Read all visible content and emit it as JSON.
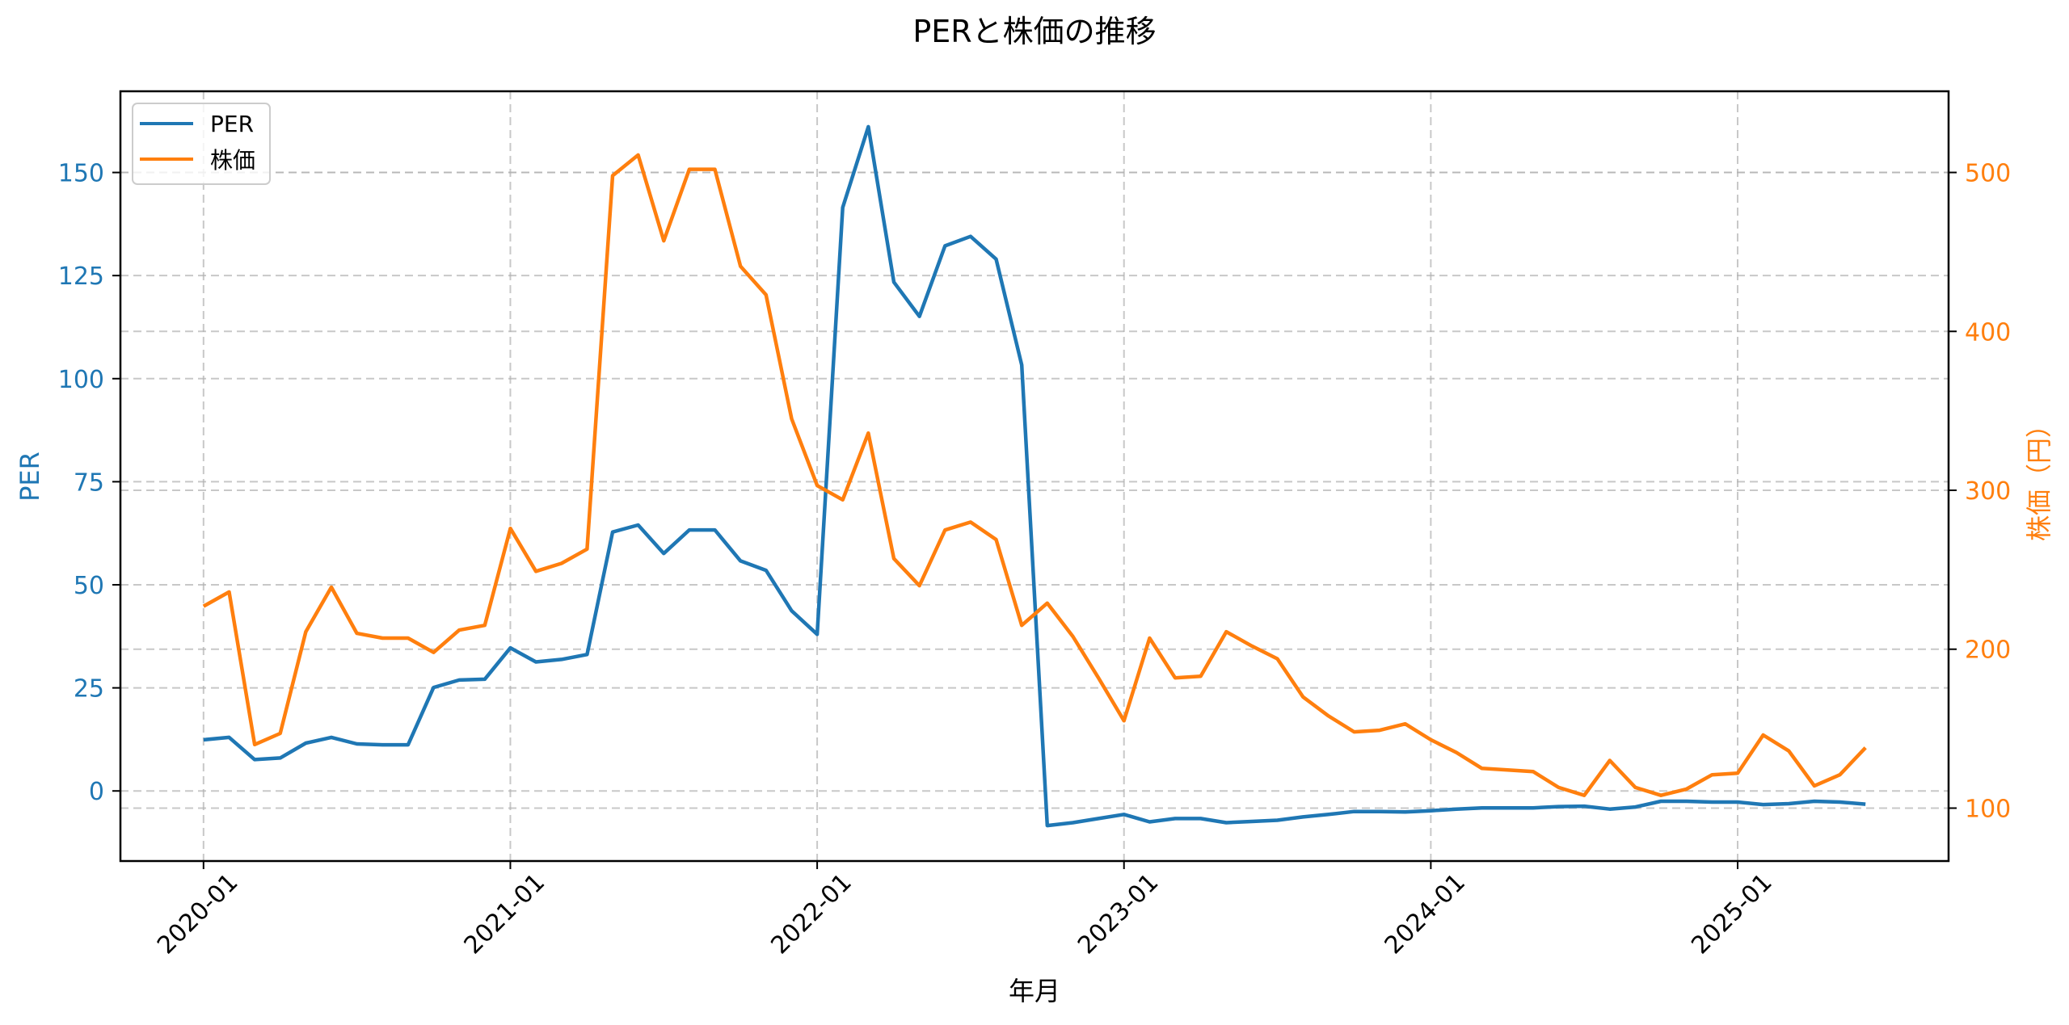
{
  "chart_data": {
    "type": "line",
    "title": "PERと株価の推移",
    "xlabel": "年月",
    "ylabel": "PER",
    "y2label": "株価（円）",
    "x_tick_labels": [
      "2020-01",
      "2021-01",
      "2022-01",
      "2023-01",
      "2024-01",
      "2025-01"
    ],
    "y_ticks": [
      0,
      25,
      50,
      75,
      100,
      125,
      150
    ],
    "y2_ticks": [
      100,
      200,
      300,
      400,
      500
    ],
    "ylim": [
      -17.0,
      169.7
    ],
    "y2lim": [
      66.7,
      551.1
    ],
    "grid": true,
    "legend_position": "upper left",
    "x": [
      "2020-01",
      "2020-02",
      "2020-03",
      "2020-04",
      "2020-05",
      "2020-06",
      "2020-07",
      "2020-08",
      "2020-09",
      "2020-10",
      "2020-11",
      "2020-12",
      "2021-01",
      "2021-02",
      "2021-03",
      "2021-04",
      "2021-05",
      "2021-06",
      "2021-07",
      "2021-08",
      "2021-09",
      "2021-10",
      "2021-11",
      "2021-12",
      "2022-01",
      "2022-02",
      "2022-03",
      "2022-04",
      "2022-05",
      "2022-06",
      "2022-07",
      "2022-08",
      "2022-09",
      "2022-10",
      "2022-11",
      "2022-12",
      "2023-01",
      "2023-02",
      "2023-03",
      "2023-04",
      "2023-05",
      "2023-06",
      "2023-07",
      "2023-08",
      "2023-09",
      "2023-10",
      "2023-11",
      "2023-12",
      "2024-01",
      "2024-02",
      "2024-03",
      "2024-04",
      "2024-05",
      "2024-06",
      "2024-07",
      "2024-08",
      "2024-09",
      "2024-10",
      "2024-11",
      "2024-12",
      "2025-01",
      "2025-02",
      "2025-03",
      "2025-04",
      "2025-05",
      "2025-06"
    ],
    "series": [
      {
        "name": "PER",
        "axis": "left",
        "color": "#1f77b4",
        "values": [
          12.4,
          13.0,
          7.6,
          8.0,
          11.6,
          13.0,
          11.4,
          11.2,
          11.2,
          25.1,
          26.9,
          27.1,
          34.7,
          31.3,
          31.9,
          33.1,
          62.8,
          64.5,
          57.6,
          63.3,
          63.3,
          55.8,
          53.5,
          43.7,
          38.0,
          141.5,
          161.1,
          123.4,
          115.1,
          132.2,
          134.5,
          129.0,
          103.3,
          -8.4,
          -7.7,
          -6.7,
          -5.7,
          -7.5,
          -6.7,
          -6.7,
          -7.7,
          -7.4,
          -7.1,
          -6.3,
          -5.7,
          -5.0,
          -5.0,
          -5.1,
          -4.8,
          -4.4,
          -4.1,
          -4.1,
          -4.1,
          -3.8,
          -3.7,
          -4.4,
          -3.9,
          -2.5,
          -2.5,
          -2.7,
          -2.7,
          -3.3,
          -3.1,
          -2.5,
          -2.7,
          -3.2
        ]
      },
      {
        "name": "株価",
        "axis": "right",
        "color": "#ff7f0e",
        "values": [
          227,
          236,
          140,
          147,
          211,
          239,
          210,
          207,
          207,
          198,
          212,
          215,
          276,
          249,
          254,
          263,
          498,
          511,
          457,
          502,
          502,
          441,
          423,
          345,
          303,
          294,
          336,
          257,
          240,
          275,
          280,
          269,
          215,
          229,
          208,
          182,
          155,
          207,
          182,
          183,
          211,
          202,
          194,
          170,
          158,
          148,
          149,
          153,
          143,
          135,
          125,
          124,
          123,
          113,
          108,
          130,
          113,
          108,
          112,
          121,
          122,
          146,
          136,
          114,
          121,
          138
        ]
      }
    ]
  },
  "legend": {
    "items": [
      {
        "label": "PER",
        "color": "#1f77b4"
      },
      {
        "label": "株価",
        "color": "#ff7f0e"
      }
    ]
  }
}
